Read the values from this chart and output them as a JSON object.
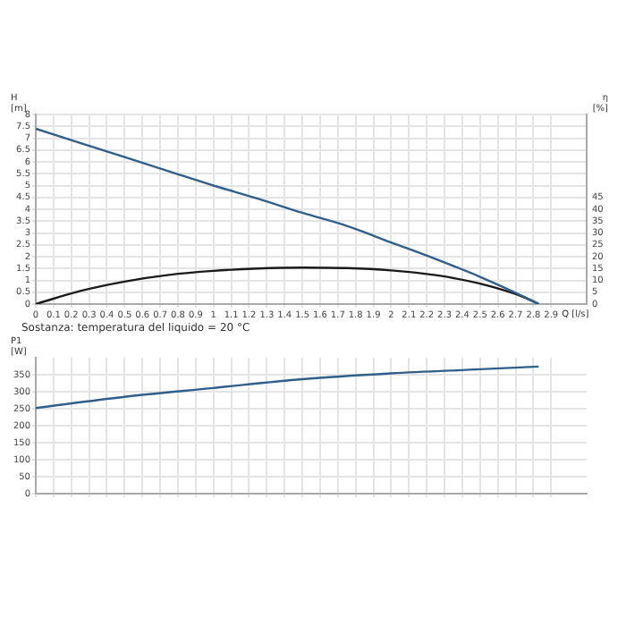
{
  "chart_data": [
    {
      "type": "line",
      "ylabel": "H [m]",
      "y2label": "η [%]",
      "xlabel": "Q [l/s]",
      "x": [
        0,
        0.25,
        0.5,
        0.75,
        1.0,
        1.25,
        1.5,
        1.75,
        2.0,
        2.25,
        2.5,
        2.75,
        2.83
      ],
      "series": [
        {
          "color": "#2f5f8a",
          "values": [
            7.4,
            6.8,
            6.2,
            5.6,
            5.0,
            4.45,
            3.85,
            3.3,
            2.6,
            1.9,
            1.15,
            0.3,
            0
          ]
        },
        {
          "color": "#1a1a1a",
          "axis": "y2",
          "values": [
            0,
            5.5,
            9.5,
            12.3,
            14,
            15,
            15.4,
            15.2,
            14.2,
            12.2,
            8.6,
            2.8,
            0
          ]
        }
      ],
      "xlim": [
        0,
        3.1
      ],
      "xticks": [
        0,
        0.1,
        0.2,
        0.3,
        0.4,
        0.5,
        0.6,
        0.7,
        0.8,
        0.9,
        1.0,
        1.1,
        1.2,
        1.3,
        1.4,
        1.5,
        1.6,
        1.7,
        1.8,
        1.9,
        2.0,
        2.1,
        2.2,
        2.3,
        2.4,
        2.5,
        2.6,
        2.7,
        2.8,
        2.9
      ],
      "ylim": [
        0,
        8
      ],
      "yticks": [
        0,
        0.5,
        1.0,
        1.5,
        2.0,
        2.5,
        3.0,
        3.5,
        4.0,
        4.5,
        5.0,
        5.5,
        6.0,
        6.5,
        7.0,
        7.5,
        8.0
      ],
      "y2lim": [
        0,
        80
      ],
      "y2ticks": [
        0,
        5,
        10,
        15,
        20,
        25,
        30,
        35,
        40,
        45
      ],
      "grid": true,
      "marker": "none",
      "line_style": "solid",
      "annotations": [
        "Sostanza: temperatura del liquido = 20 °C"
      ]
    },
    {
      "type": "line",
      "ylabel": "P1 [W]",
      "x": [
        0,
        0.5,
        1.0,
        1.5,
        2.0,
        2.5,
        2.83
      ],
      "series": [
        {
          "color": "#2f5f8a",
          "values": [
            252,
            285,
            311,
            337,
            354,
            366,
            374
          ]
        }
      ],
      "xlim": [
        0,
        3.1
      ],
      "xticks": [
        0,
        0.1,
        0.2,
        0.3,
        0.4,
        0.5,
        0.6,
        0.7,
        0.8,
        0.9,
        1.0,
        1.1,
        1.2,
        1.3,
        1.4,
        1.5,
        1.6,
        1.7,
        1.8,
        1.9,
        2.0,
        2.1,
        2.2,
        2.3,
        2.4,
        2.5,
        2.6,
        2.7,
        2.8,
        2.9
      ],
      "ylim": [
        0,
        400
      ],
      "yticks": [
        0,
        50,
        100,
        150,
        200,
        250,
        300,
        350
      ],
      "grid": true,
      "marker": "none",
      "line_style": "solid",
      "tick_labels": "y"
    }
  ]
}
